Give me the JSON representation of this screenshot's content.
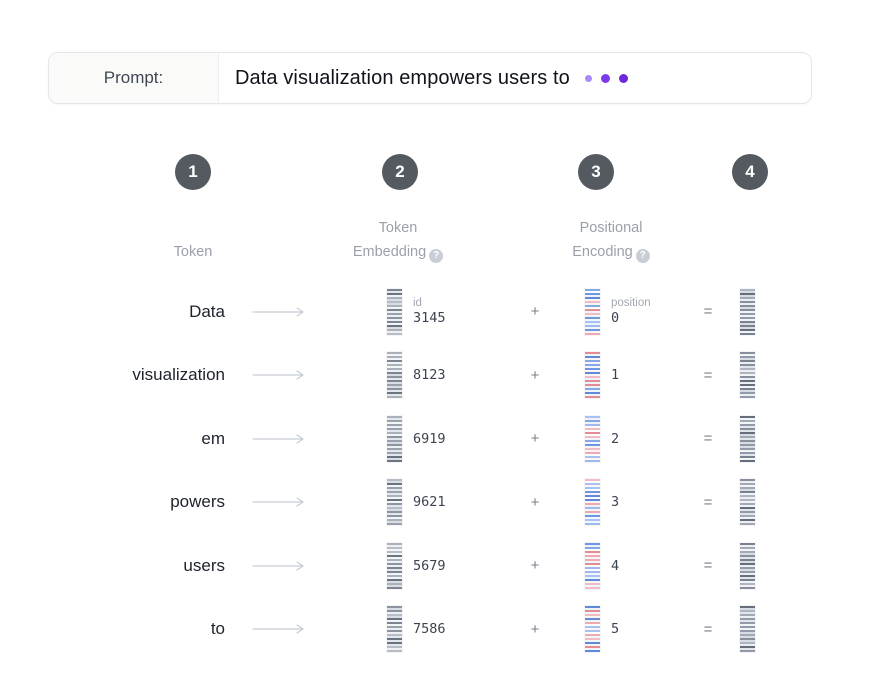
{
  "prompt": {
    "label": "Prompt:",
    "text": "Data visualization empowers users to"
  },
  "header": {
    "steps": [
      {
        "number": "1"
      },
      {
        "number": "2"
      },
      {
        "number": "3"
      },
      {
        "number": "4"
      }
    ],
    "labels": {
      "token": "Token",
      "embedding_line1": "Token",
      "embedding_line2": "Embedding",
      "positional_line1": "Positional",
      "positional_line2": "Encoding"
    }
  },
  "icons": {
    "help": "?"
  },
  "operators": {
    "plus": "+",
    "equals": "="
  },
  "table": {
    "id_label": "id",
    "position_label": "position",
    "rows": [
      {
        "token": "Data",
        "id": "3145",
        "position": "0"
      },
      {
        "token": "visualization",
        "id": "8123",
        "position": "1"
      },
      {
        "token": "em",
        "id": "6919",
        "position": "2"
      },
      {
        "token": "powers",
        "id": "9621",
        "position": "3"
      },
      {
        "token": "users",
        "id": "5679",
        "position": "4"
      },
      {
        "token": "to",
        "id": "7586",
        "position": "5"
      }
    ]
  },
  "colors": {
    "accent_purple": "#7c3aed",
    "dot_light": "#a78bfa",
    "dot_dark": "#6d28d9",
    "step_circle": "#555a61",
    "label_gray": "#9aa1ab",
    "embedding_gray": "#8c94a1",
    "positional_blue": "#6e97e2",
    "positional_red": "#e58b94"
  }
}
